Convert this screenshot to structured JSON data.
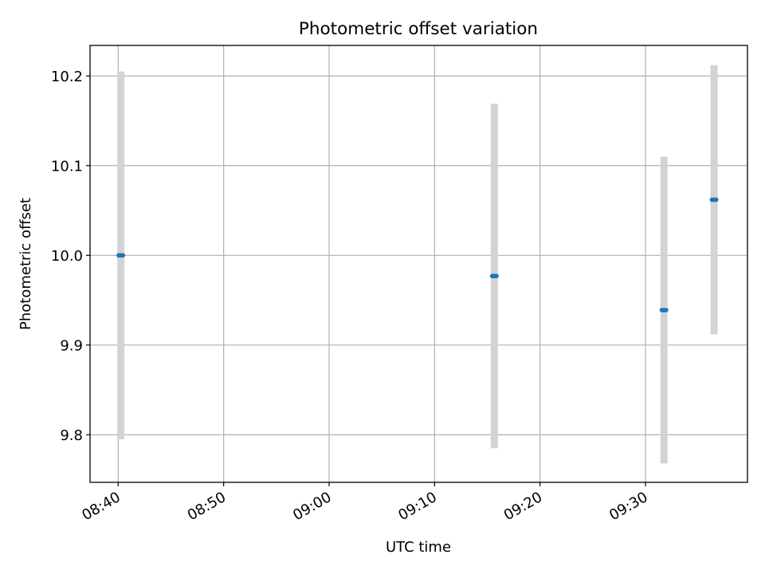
{
  "chart_data": {
    "type": "scatter",
    "title": "Photometric offset variation",
    "xlabel": "UTC time",
    "ylabel": "Photometric offset",
    "x_ticks": [
      "08:40",
      "08:50",
      "09:00",
      "09:10",
      "09:20",
      "09:30"
    ],
    "y_ticks": [
      "9.8",
      "9.9",
      "10.0",
      "10.1",
      "10.2"
    ],
    "x_tick_values": [
      "08:40",
      "08:50",
      "09:00",
      "09:10",
      "09:20",
      "09:30"
    ],
    "y_tick_values": [
      9.8,
      9.9,
      10.0,
      10.1,
      10.2
    ],
    "xlim": [
      "08:37:20",
      "09:39:40"
    ],
    "ylim": [
      9.747,
      10.234
    ],
    "grid": true,
    "marker_color": "#1f77b4",
    "errorbar_color": "#d3d3d3",
    "points": [
      {
        "x": "08:40:15",
        "y": 10.0,
        "yerr": 0.205
      },
      {
        "x": "09:15:40",
        "y": 9.977,
        "yerr": 0.192
      },
      {
        "x": "09:31:45",
        "y": 9.939,
        "yerr": 0.171
      },
      {
        "x": "09:36:30",
        "y": 10.062,
        "yerr": 0.15
      }
    ]
  }
}
